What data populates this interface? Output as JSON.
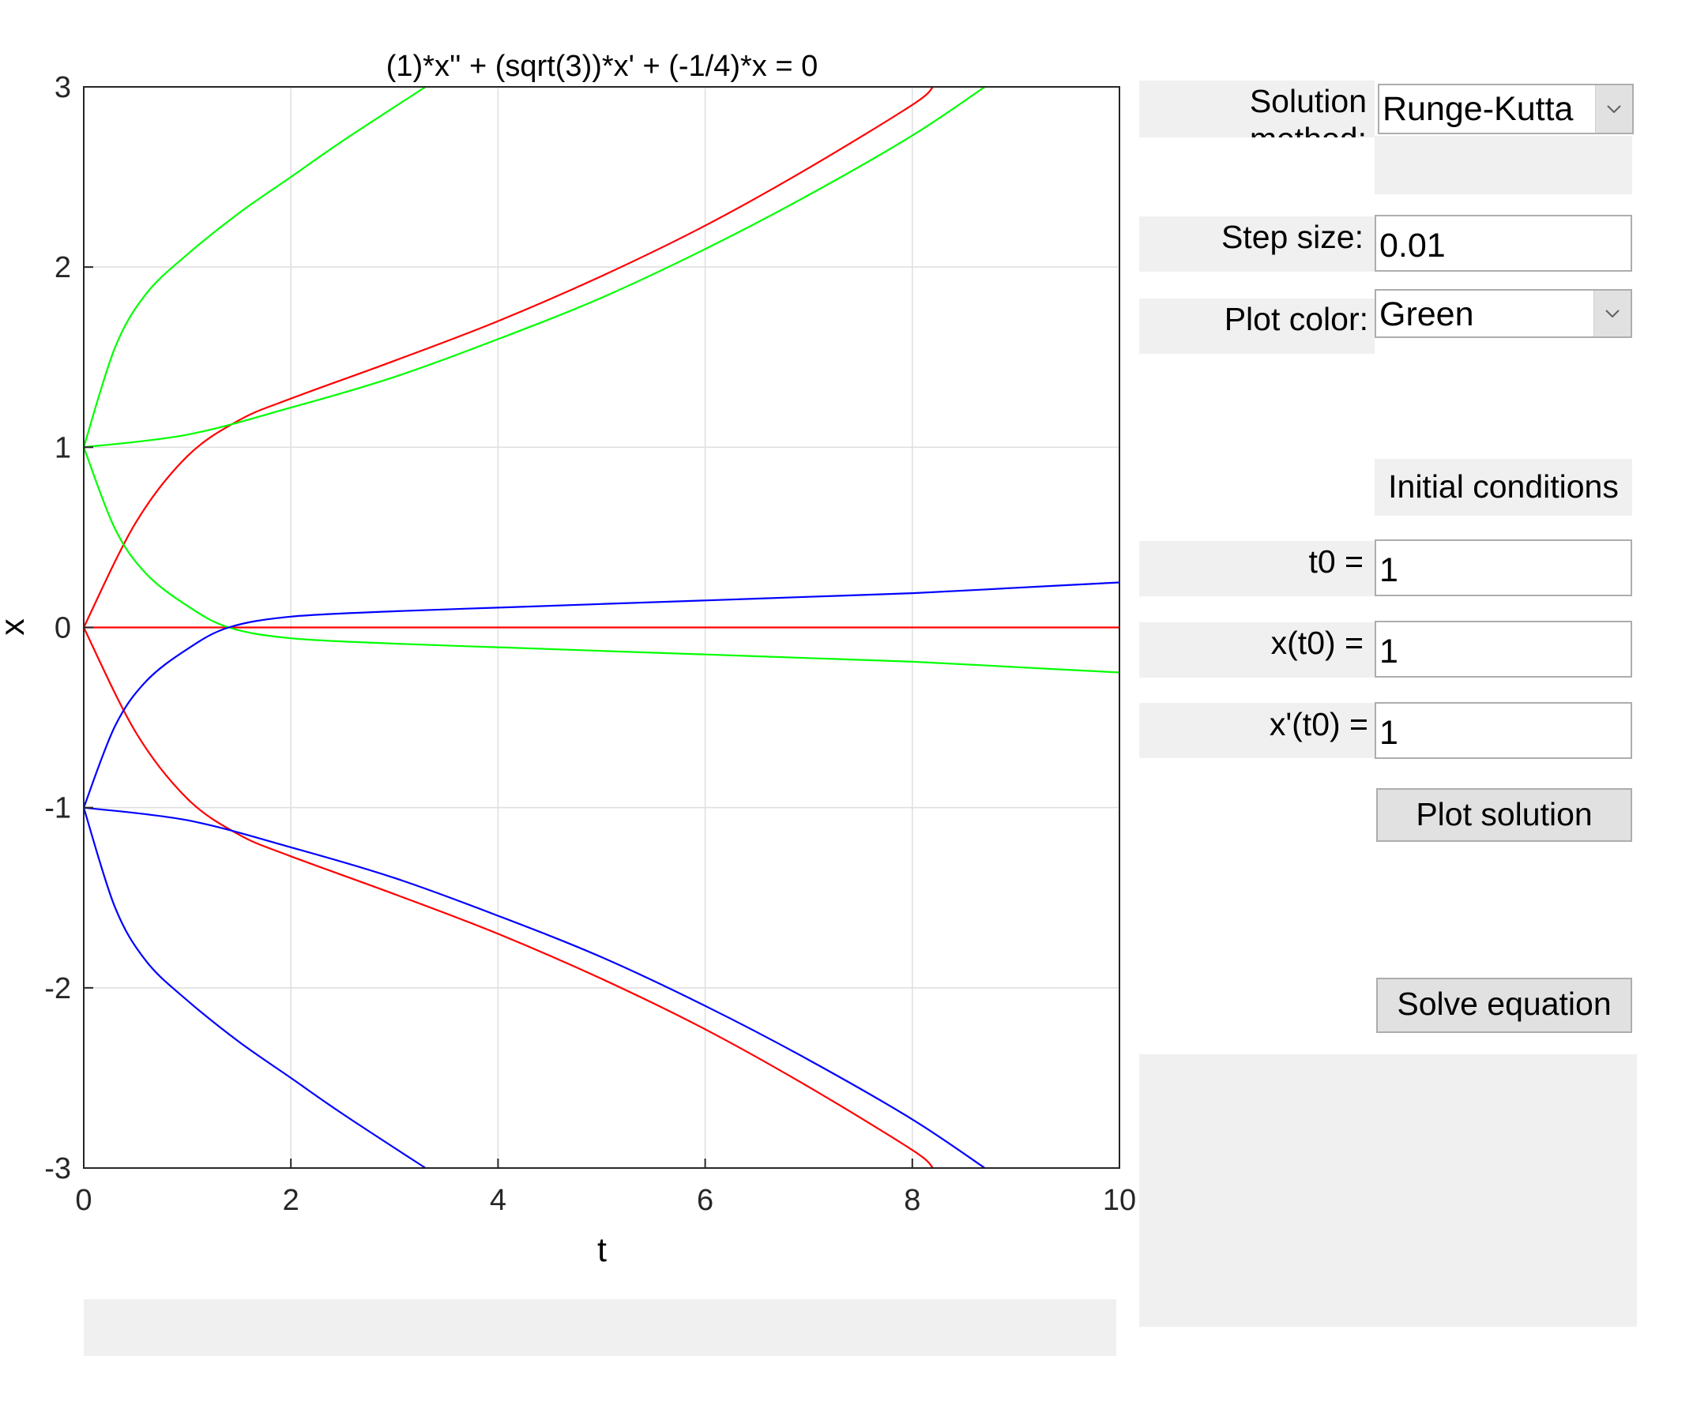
{
  "window": {
    "controls": {
      "solution_method_label": "Solution method:",
      "solution_method_value": "Runge-Kutta",
      "step_size_label": "Step size:",
      "step_size_value": "0.01",
      "plot_color_label": "Plot color:",
      "plot_color_value": "Green",
      "initial_conditions_header": "Initial conditions",
      "t0_label": "t0 =",
      "t0_value": "1",
      "x0_label": "x(t0) =",
      "x0_value": "1",
      "xp0_label": "x'(t0) =",
      "xp0_value": "1",
      "plot_button": "Plot solution",
      "solve_button": "Solve equation"
    },
    "icons": {
      "dropdown_arrow": "chevron-down-icon"
    }
  },
  "chart_data": {
    "type": "line",
    "title": "(1)*x'' + (sqrt(3))*x' + (-1/4)*x = 0",
    "xlabel": "t",
    "ylabel": "x",
    "xlim": [
      0,
      10
    ],
    "ylim": [
      -3,
      3
    ],
    "xticks": [
      0,
      2,
      4,
      6,
      8,
      10
    ],
    "yticks": [
      -3,
      -2,
      -1,
      0,
      1,
      2,
      3
    ],
    "grid": true,
    "colors": {
      "red": "#ff0000",
      "green": "#00ff00",
      "blue": "#0000ff"
    },
    "series": [
      {
        "color": "red",
        "x": [
          0,
          0.5,
          1,
          1.5,
          2,
          3,
          4,
          5,
          6,
          7,
          8,
          8.2
        ],
        "y": [
          0,
          0.58,
          0.95,
          1.15,
          1.27,
          1.48,
          1.7,
          1.95,
          2.23,
          2.55,
          2.9,
          3.0
        ]
      },
      {
        "color": "red",
        "x": [
          0,
          10
        ],
        "y": [
          0,
          0
        ]
      },
      {
        "color": "red",
        "x": [
          0,
          0.5,
          1,
          1.5,
          2,
          3,
          4,
          5,
          6,
          7,
          8,
          8.2
        ],
        "y": [
          0,
          -0.58,
          -0.95,
          -1.15,
          -1.27,
          -1.48,
          -1.7,
          -1.95,
          -2.23,
          -2.55,
          -2.9,
          -3.0
        ]
      },
      {
        "color": "green",
        "x": [
          0,
          0.3,
          0.6,
          1,
          1.5,
          2,
          2.5,
          3.3
        ],
        "y": [
          1,
          1.55,
          1.85,
          2.07,
          2.3,
          2.5,
          2.7,
          3.0
        ]
      },
      {
        "color": "green",
        "x": [
          0,
          1,
          2,
          3,
          4,
          5,
          6,
          7,
          8,
          8.7
        ],
        "y": [
          1,
          1.07,
          1.22,
          1.39,
          1.6,
          1.83,
          2.1,
          2.4,
          2.73,
          3.0
        ]
      },
      {
        "color": "green",
        "x": [
          0,
          0.3,
          0.6,
          1,
          1.4,
          2,
          3,
          4,
          5,
          6,
          7,
          8,
          9,
          10
        ],
        "y": [
          1,
          0.55,
          0.3,
          0.12,
          0.0,
          -0.06,
          -0.09,
          -0.11,
          -0.13,
          -0.15,
          -0.17,
          -0.19,
          -0.22,
          -0.25
        ]
      },
      {
        "color": "blue",
        "x": [
          0,
          0.3,
          0.6,
          1,
          1.4,
          2,
          3,
          4,
          5,
          6,
          7,
          8,
          9,
          10
        ],
        "y": [
          -1,
          -0.55,
          -0.3,
          -0.12,
          0.0,
          0.06,
          0.09,
          0.11,
          0.13,
          0.15,
          0.17,
          0.19,
          0.22,
          0.25
        ]
      },
      {
        "color": "blue",
        "x": [
          0,
          1,
          2,
          3,
          4,
          5,
          6,
          7,
          8,
          8.7
        ],
        "y": [
          -1,
          -1.07,
          -1.22,
          -1.39,
          -1.6,
          -1.83,
          -2.1,
          -2.4,
          -2.73,
          -3.0
        ]
      },
      {
        "color": "blue",
        "x": [
          0,
          0.3,
          0.6,
          1,
          1.5,
          2,
          2.5,
          3.3
        ],
        "y": [
          -1,
          -1.55,
          -1.85,
          -2.07,
          -2.3,
          -2.5,
          -2.7,
          -3.0
        ]
      }
    ]
  }
}
